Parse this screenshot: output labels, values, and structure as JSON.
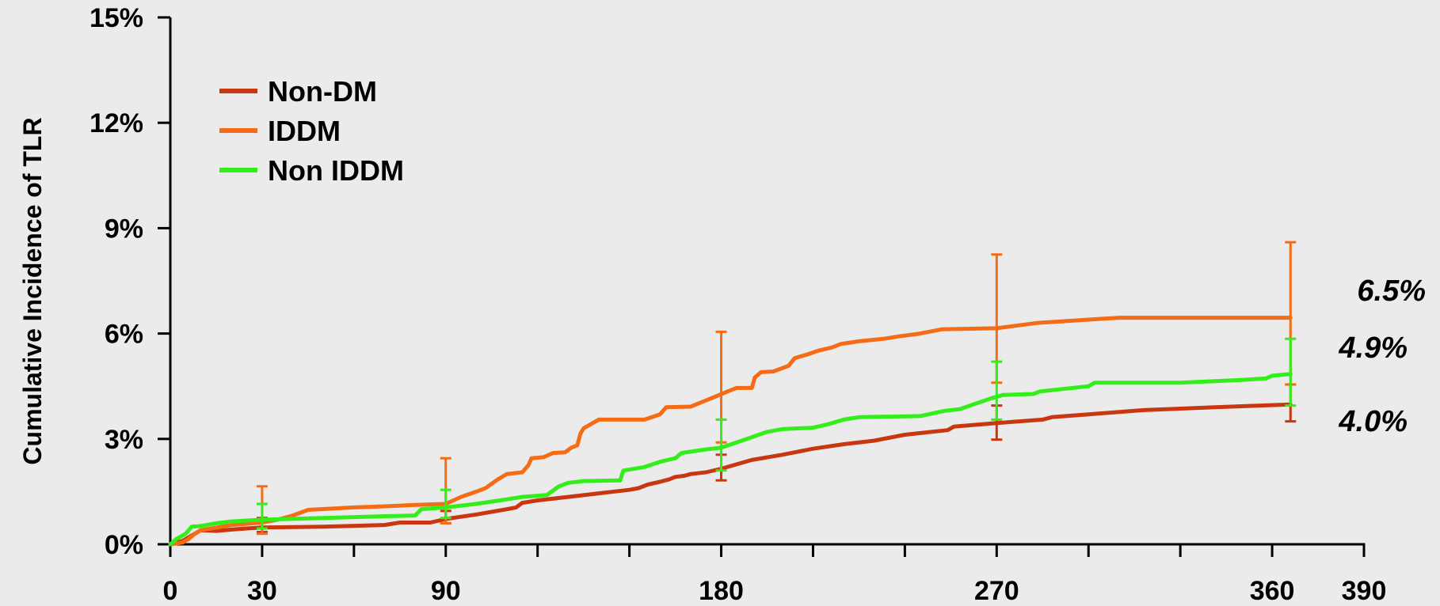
{
  "chart_data": {
    "type": "line",
    "ylabel": "Cumulative Incidence of TLR",
    "xlabel": "",
    "xlim": [
      0,
      390
    ],
    "ylim": [
      0,
      15
    ],
    "x_ticks": [
      0,
      30,
      60,
      90,
      120,
      150,
      180,
      210,
      240,
      270,
      300,
      330,
      360,
      390
    ],
    "x_tick_labels": [
      {
        "x": 0,
        "label": "0"
      },
      {
        "x": 30,
        "label": "30"
      },
      {
        "x": 90,
        "label": "90"
      },
      {
        "x": 180,
        "label": "180"
      },
      {
        "x": 270,
        "label": "270"
      },
      {
        "x": 360,
        "label": "360"
      },
      {
        "x": 390,
        "label": "390"
      }
    ],
    "y_ticks": [
      {
        "value": 0,
        "label": "0%"
      },
      {
        "value": 3,
        "label": "3%"
      },
      {
        "value": 6,
        "label": "6%"
      },
      {
        "value": 9,
        "label": "9%"
      },
      {
        "value": 12,
        "label": "12%"
      },
      {
        "value": 15,
        "label": "15%"
      }
    ],
    "legend_position": "top-left",
    "grid": false,
    "series": [
      {
        "name": "Non-DM",
        "color": "#c8370f",
        "points": [
          [
            0,
            0
          ],
          [
            4,
            0.1
          ],
          [
            6,
            0.2
          ],
          [
            8,
            0.3
          ],
          [
            10,
            0.4
          ],
          [
            15,
            0.38
          ],
          [
            20,
            0.42
          ],
          [
            25,
            0.45
          ],
          [
            30,
            0.48
          ],
          [
            50,
            0.5
          ],
          [
            70,
            0.55
          ],
          [
            75,
            0.62
          ],
          [
            85,
            0.62
          ],
          [
            90,
            0.72
          ],
          [
            100,
            0.85
          ],
          [
            110,
            1.0
          ],
          [
            113,
            1.05
          ],
          [
            115,
            1.18
          ],
          [
            120,
            1.25
          ],
          [
            130,
            1.35
          ],
          [
            140,
            1.45
          ],
          [
            150,
            1.55
          ],
          [
            153,
            1.6
          ],
          [
            156,
            1.7
          ],
          [
            160,
            1.78
          ],
          [
            163,
            1.85
          ],
          [
            165,
            1.92
          ],
          [
            168,
            1.95
          ],
          [
            170,
            2.0
          ],
          [
            175,
            2.05
          ],
          [
            180,
            2.15
          ],
          [
            190,
            2.4
          ],
          [
            200,
            2.55
          ],
          [
            210,
            2.72
          ],
          [
            220,
            2.85
          ],
          [
            230,
            2.95
          ],
          [
            240,
            3.12
          ],
          [
            254,
            3.25
          ],
          [
            256,
            3.35
          ],
          [
            270,
            3.45
          ],
          [
            285,
            3.55
          ],
          [
            288,
            3.62
          ],
          [
            300,
            3.7
          ],
          [
            318,
            3.82
          ],
          [
            335,
            3.88
          ],
          [
            350,
            3.93
          ],
          [
            366,
            3.98
          ]
        ],
        "error_bars": [
          {
            "x": 30,
            "value": 0.48,
            "low": 0.35,
            "high": 0.75
          },
          {
            "x": 90,
            "value": 0.72,
            "low": 0.6,
            "high": 0.95
          },
          {
            "x": 180,
            "value": 2.15,
            "low": 1.82,
            "high": 2.55
          },
          {
            "x": 270,
            "value": 3.45,
            "low": 2.98,
            "high": 3.95
          },
          {
            "x": 366,
            "value": 3.98,
            "low": 3.5,
            "high": 4.55
          }
        ],
        "end_label": "4.0%"
      },
      {
        "name": "IDDM",
        "color": "#f56c16",
        "points": [
          [
            0,
            0
          ],
          [
            4,
            0.05
          ],
          [
            6,
            0.15
          ],
          [
            8,
            0.3
          ],
          [
            10,
            0.4
          ],
          [
            20,
            0.55
          ],
          [
            30,
            0.62
          ],
          [
            35,
            0.7
          ],
          [
            40,
            0.82
          ],
          [
            45,
            0.98
          ],
          [
            60,
            1.05
          ],
          [
            70,
            1.08
          ],
          [
            80,
            1.12
          ],
          [
            90,
            1.15
          ],
          [
            95,
            1.35
          ],
          [
            100,
            1.5
          ],
          [
            103,
            1.6
          ],
          [
            105,
            1.72
          ],
          [
            107,
            1.85
          ],
          [
            110,
            2.0
          ],
          [
            115,
            2.05
          ],
          [
            117,
            2.25
          ],
          [
            118,
            2.45
          ],
          [
            122,
            2.48
          ],
          [
            125,
            2.6
          ],
          [
            129,
            2.62
          ],
          [
            131,
            2.75
          ],
          [
            133,
            2.82
          ],
          [
            134,
            3.15
          ],
          [
            135,
            3.3
          ],
          [
            137,
            3.4
          ],
          [
            140,
            3.55
          ],
          [
            155,
            3.55
          ],
          [
            160,
            3.7
          ],
          [
            162,
            3.9
          ],
          [
            170,
            3.92
          ],
          [
            178,
            4.2
          ],
          [
            182,
            4.35
          ],
          [
            185,
            4.45
          ],
          [
            190,
            4.45
          ],
          [
            191,
            4.75
          ],
          [
            193,
            4.9
          ],
          [
            197,
            4.92
          ],
          [
            202,
            5.08
          ],
          [
            204,
            5.3
          ],
          [
            208,
            5.4
          ],
          [
            212,
            5.52
          ],
          [
            216,
            5.6
          ],
          [
            219,
            5.7
          ],
          [
            225,
            5.78
          ],
          [
            233,
            5.85
          ],
          [
            238,
            5.92
          ],
          [
            245,
            6.0
          ],
          [
            252,
            6.12
          ],
          [
            270,
            6.15
          ],
          [
            283,
            6.3
          ],
          [
            310,
            6.45
          ],
          [
            366,
            6.45
          ]
        ],
        "error_bars": [
          {
            "x": 30,
            "value": 0.62,
            "low": 0.3,
            "high": 1.65
          },
          {
            "x": 90,
            "value": 1.15,
            "low": 0.6,
            "high": 2.45
          },
          {
            "x": 180,
            "value": 4.2,
            "low": 2.9,
            "high": 6.05
          },
          {
            "x": 270,
            "value": 6.15,
            "low": 4.6,
            "high": 8.25
          },
          {
            "x": 366,
            "value": 6.45,
            "low": 4.55,
            "high": 8.6
          }
        ],
        "end_label": "6.5%"
      },
      {
        "name": "Non IDDM",
        "color": "#33ee1a",
        "points": [
          [
            0,
            0
          ],
          [
            2,
            0.15
          ],
          [
            5,
            0.3
          ],
          [
            7,
            0.5
          ],
          [
            10,
            0.52
          ],
          [
            15,
            0.6
          ],
          [
            20,
            0.65
          ],
          [
            30,
            0.7
          ],
          [
            50,
            0.75
          ],
          [
            70,
            0.8
          ],
          [
            80,
            0.82
          ],
          [
            82,
            1.0
          ],
          [
            90,
            1.05
          ],
          [
            100,
            1.15
          ],
          [
            110,
            1.28
          ],
          [
            115,
            1.35
          ],
          [
            123,
            1.4
          ],
          [
            127,
            1.65
          ],
          [
            130,
            1.75
          ],
          [
            135,
            1.8
          ],
          [
            147,
            1.82
          ],
          [
            148,
            2.1
          ],
          [
            155,
            2.2
          ],
          [
            160,
            2.35
          ],
          [
            165,
            2.45
          ],
          [
            167,
            2.6
          ],
          [
            175,
            2.7
          ],
          [
            180,
            2.75
          ],
          [
            185,
            2.9
          ],
          [
            190,
            3.05
          ],
          [
            195,
            3.2
          ],
          [
            200,
            3.28
          ],
          [
            210,
            3.32
          ],
          [
            215,
            3.42
          ],
          [
            220,
            3.55
          ],
          [
            225,
            3.62
          ],
          [
            245,
            3.65
          ],
          [
            253,
            3.8
          ],
          [
            258,
            3.85
          ],
          [
            263,
            4.0
          ],
          [
            268,
            4.15
          ],
          [
            272,
            4.25
          ],
          [
            282,
            4.28
          ],
          [
            284,
            4.35
          ],
          [
            300,
            4.5
          ],
          [
            302,
            4.6
          ],
          [
            330,
            4.6
          ],
          [
            350,
            4.68
          ],
          [
            358,
            4.72
          ],
          [
            360,
            4.8
          ],
          [
            366,
            4.85
          ]
        ],
        "error_bars": [
          {
            "x": 30,
            "value": 0.7,
            "low": 0.45,
            "high": 1.15
          },
          {
            "x": 90,
            "value": 1.05,
            "low": 0.75,
            "high": 1.55
          },
          {
            "x": 180,
            "value": 2.75,
            "low": 2.1,
            "high": 3.55
          },
          {
            "x": 270,
            "value": 4.25,
            "low": 3.55,
            "high": 5.2
          },
          {
            "x": 366,
            "value": 4.85,
            "low": 3.95,
            "high": 5.85
          }
        ],
        "end_label": "4.9%"
      }
    ]
  }
}
